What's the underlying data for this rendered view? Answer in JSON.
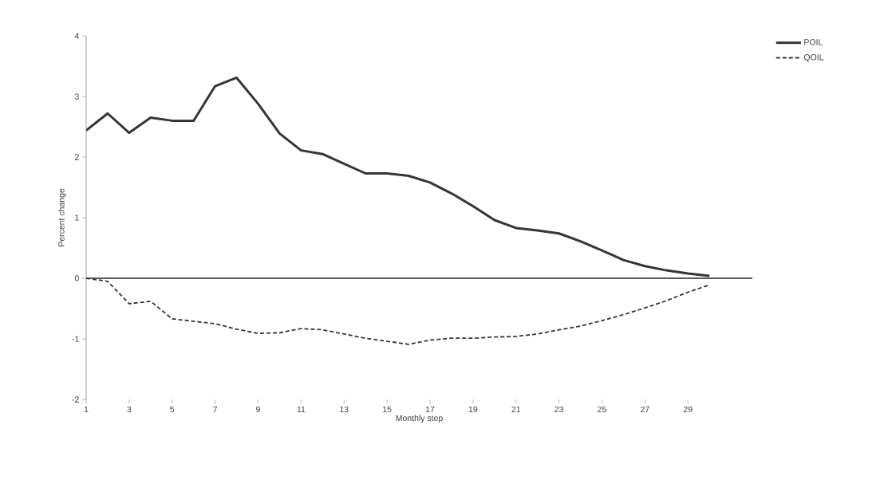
{
  "chart_data": {
    "type": "line",
    "xlabel": "Monthly step",
    "ylabel": "Percent change",
    "x": [
      1,
      2,
      3,
      4,
      5,
      6,
      7,
      8,
      9,
      10,
      11,
      12,
      13,
      14,
      15,
      16,
      17,
      18,
      19,
      20,
      21,
      22,
      23,
      24,
      25,
      26,
      27,
      28,
      29,
      30
    ],
    "series": [
      {
        "name": "POIL",
        "color": "#353535",
        "line_style": "solid",
        "values": [
          2.44,
          2.72,
          2.4,
          2.65,
          2.6,
          2.6,
          3.17,
          3.31,
          2.88,
          2.39,
          2.11,
          2.05,
          1.89,
          1.73,
          1.73,
          1.69,
          1.58,
          1.4,
          1.19,
          0.96,
          0.83,
          0.79,
          0.74,
          0.61,
          0.46,
          0.3,
          0.2,
          0.13,
          0.08,
          0.04
        ]
      },
      {
        "name": "QOIL",
        "color": "#353535",
        "line_style": "dashed",
        "values": [
          0,
          -0.05,
          -0.42,
          -0.38,
          -0.67,
          -0.71,
          -0.75,
          -0.84,
          -0.91,
          -0.9,
          -0.83,
          -0.85,
          -0.92,
          -0.99,
          -1.04,
          -1.09,
          -1.02,
          -0.99,
          -0.99,
          -0.97,
          -0.96,
          -0.92,
          -0.85,
          -0.79,
          -0.7,
          -0.6,
          -0.49,
          -0.37,
          -0.23,
          -0.11
        ]
      }
    ],
    "xlim": [
      1,
      32
    ],
    "ylim": [
      -2,
      4
    ],
    "xticks": [
      1,
      3,
      5,
      7,
      9,
      11,
      13,
      15,
      17,
      19,
      21,
      23,
      25,
      27,
      29
    ],
    "yticks": [
      -2,
      -1,
      0,
      1,
      2,
      3,
      4
    ],
    "ref_lines": [
      {
        "axis": "y",
        "value": 0,
        "color": "#5a5a5a"
      }
    ],
    "grid": false,
    "legend": "top right",
    "marker": "none"
  }
}
